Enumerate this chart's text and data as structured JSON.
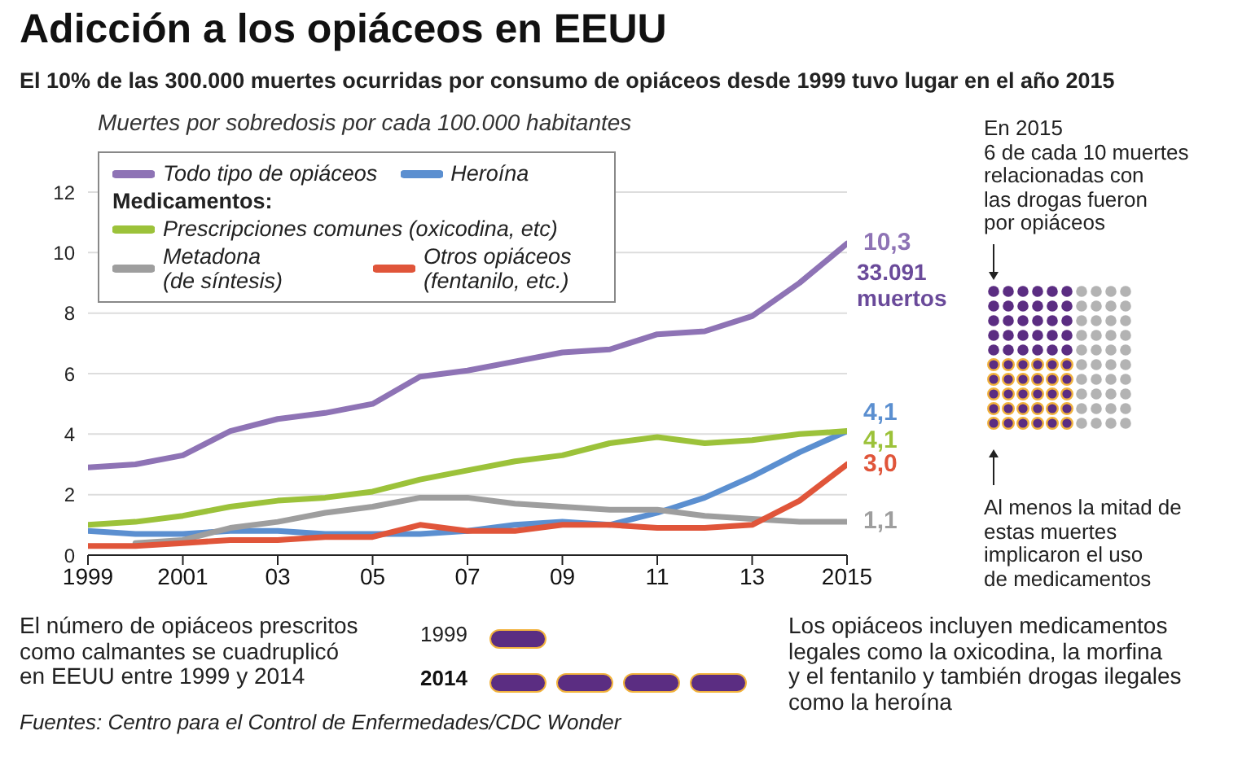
{
  "chart_data": {
    "type": "line",
    "title": "Adicción a los opiáceos en EEUU",
    "subtitle": "El 10% de las 300.000 muertes ocurridas por consumo de opiáceos desde 1999 tuvo lugar en el año 2015",
    "ylabel": "Muertes por sobredosis por cada 100.000 habitantes",
    "legend_title": "Medicamentos:",
    "legend": "top left",
    "grid": "y",
    "marker": "none",
    "line_style": "solid",
    "x": [
      1999,
      2000,
      2001,
      2002,
      2003,
      2004,
      2005,
      2006,
      2007,
      2008,
      2009,
      2010,
      2011,
      2012,
      2013,
      2014,
      2015
    ],
    "xlim": [
      1999,
      2015
    ],
    "xticks": [
      1999,
      2001,
      {
        "value": 2003,
        "label": "03"
      },
      {
        "value": 2005,
        "label": "05"
      },
      {
        "value": 2007,
        "label": "07"
      },
      {
        "value": 2009,
        "label": "09"
      },
      {
        "value": 2011,
        "label": "11"
      },
      {
        "value": 2013,
        "label": "13"
      },
      2015
    ],
    "ylim": [
      0,
      12
    ],
    "yticks": [
      0,
      2,
      4,
      6,
      8,
      10,
      12
    ],
    "series": [
      {
        "name": "Todo tipo de opiáceos",
        "color": "#8e73b5",
        "values": [
          2.9,
          3.0,
          3.3,
          4.1,
          4.5,
          4.7,
          5.0,
          5.9,
          6.1,
          6.4,
          6.7,
          6.8,
          7.3,
          7.4,
          7.9,
          9.0,
          10.3
        ],
        "value_labels": [
          null,
          null,
          null,
          null,
          null,
          null,
          null,
          null,
          null,
          null,
          null,
          null,
          null,
          null,
          null,
          null,
          "10,3"
        ]
      },
      {
        "name": "Heroína",
        "color": "#5b8fd0",
        "values": [
          0.8,
          0.7,
          0.7,
          0.8,
          0.8,
          0.7,
          0.7,
          0.7,
          0.8,
          1.0,
          1.1,
          1.0,
          1.4,
          1.9,
          2.6,
          3.4,
          4.1
        ],
        "value_labels": [
          null,
          null,
          null,
          null,
          null,
          null,
          null,
          null,
          null,
          null,
          null,
          null,
          null,
          null,
          null,
          null,
          "4,1"
        ]
      },
      {
        "name": "Prescripciones comunes (oxicodina, etc)",
        "color": "#9cc23a",
        "values": [
          1.0,
          1.1,
          1.3,
          1.6,
          1.8,
          1.9,
          2.1,
          2.5,
          2.8,
          3.1,
          3.3,
          3.7,
          3.9,
          3.7,
          3.8,
          4.0,
          4.1
        ],
        "value_labels": [
          null,
          null,
          null,
          null,
          null,
          null,
          null,
          null,
          null,
          null,
          null,
          null,
          null,
          null,
          null,
          null,
          "4,1"
        ]
      },
      {
        "name": "Metadona\n(de síntesis)",
        "color": "#9e9e9e",
        "values": [
          null,
          0.4,
          0.5,
          0.9,
          1.1,
          1.4,
          1.6,
          1.9,
          1.9,
          1.7,
          1.6,
          1.5,
          1.5,
          1.3,
          1.2,
          1.1,
          1.1
        ],
        "value_labels": [
          null,
          null,
          null,
          null,
          null,
          null,
          null,
          null,
          null,
          null,
          null,
          null,
          null,
          null,
          null,
          null,
          "1,1"
        ]
      },
      {
        "name": "Otros opiáceos\n(fentanilo, etc.)",
        "color": "#e0553a",
        "values": [
          0.3,
          0.3,
          0.4,
          0.5,
          0.5,
          0.6,
          0.6,
          1.0,
          0.8,
          0.8,
          1.0,
          1.0,
          0.9,
          0.9,
          1.0,
          1.8,
          3.0
        ],
        "value_labels": [
          null,
          null,
          null,
          null,
          null,
          null,
          null,
          null,
          null,
          null,
          null,
          null,
          null,
          null,
          null,
          null,
          "3,0"
        ]
      }
    ],
    "annotations": [
      "33.091\nmuertos",
      "En 2015\n6 de cada 10 muertes\nrelacionadas con\nlas drogas fueron\npor opiáceos",
      "Al menos la mitad de\nestas muertes\nimplicaron el uso\nde medicamentos",
      "El número de opiáceos prescritos\ncomo calmantes se cuadruplicó\nen EEUU entre 1999 y 2014",
      "1999",
      "2014",
      "Los opiáceos incluyen medicamentos\nlegales como la oxicodina, la morfina\ny el fentanilo y también drogas ilegales\ncomo la heroína",
      "Fuentes: Centro para el Control de Enfermedades/CDC Wonder"
    ]
  }
}
